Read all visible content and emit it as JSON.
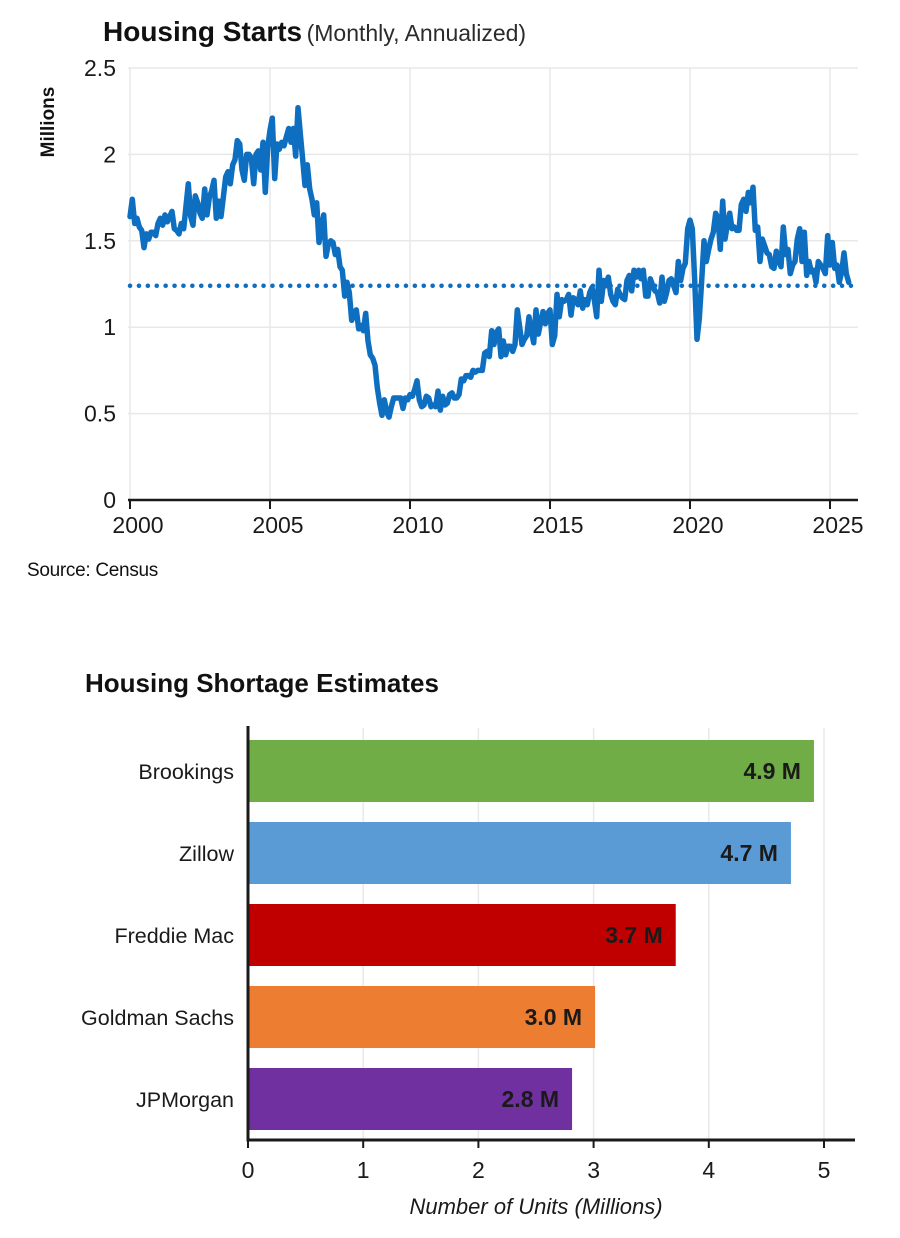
{
  "page": {
    "background": "#ffffff",
    "text_color": "#1a1a1a"
  },
  "chart_data": [
    {
      "type": "line",
      "title": "Housing Starts",
      "subtitle": "(Monthly, Annualized)",
      "ylabel": "Millions",
      "source": "Source: Census",
      "xlim": [
        2000,
        2026
      ],
      "ylim": [
        0,
        2.5
      ],
      "x_ticks": [
        2000,
        2005,
        2010,
        2015,
        2020,
        2025
      ],
      "y_ticks": [
        0,
        0.5,
        1,
        1.5,
        2,
        2.5
      ],
      "grid": true,
      "line_color": "#0E6FC1",
      "grid_color": "#e8e8e8",
      "axis_color": "#1a1a1a",
      "reference_line": {
        "value": 1.24,
        "style": "dotted",
        "color": "#0E6FC1"
      },
      "series": [
        {
          "name": "Housing Starts",
          "frequency": "monthly",
          "start_year": 2000,
          "start_month": 1,
          "values": [
            1.64,
            1.74,
            1.6,
            1.63,
            1.58,
            1.56,
            1.46,
            1.54,
            1.51,
            1.55,
            1.55,
            1.53,
            1.6,
            1.63,
            1.59,
            1.65,
            1.61,
            1.64,
            1.67,
            1.57,
            1.56,
            1.54,
            1.6,
            1.57,
            1.7,
            1.83,
            1.64,
            1.59,
            1.76,
            1.72,
            1.66,
            1.63,
            1.8,
            1.65,
            1.75,
            1.79,
            1.85,
            1.63,
            1.73,
            1.64,
            1.75,
            1.87,
            1.9,
            1.83,
            1.94,
            1.97,
            2.08,
            2.06,
            1.91,
            1.85,
            2.0,
            2.0,
            1.98,
            1.83,
            2.0,
            2.02,
            1.91,
            2.07,
            1.78,
            2.04,
            2.14,
            2.21,
            1.86,
            2.06,
            2.03,
            2.07,
            2.05,
            2.1,
            2.15,
            2.07,
            2.15,
            1.99,
            2.27,
            2.12,
            1.97,
            1.82,
            1.94,
            1.8,
            1.74,
            1.65,
            1.72,
            1.49,
            1.57,
            1.65,
            1.41,
            1.48,
            1.5,
            1.49,
            1.42,
            1.45,
            1.35,
            1.33,
            1.18,
            1.26,
            1.2,
            1.04,
            1.08,
            1.1,
            0.99,
            1.01,
            0.98,
            1.08,
            0.92,
            0.84,
            0.82,
            0.78,
            0.65,
            0.56,
            0.49,
            0.58,
            0.51,
            0.48,
            0.54,
            0.59,
            0.59,
            0.59,
            0.59,
            0.53,
            0.59,
            0.58,
            0.61,
            0.6,
            0.64,
            0.69,
            0.58,
            0.54,
            0.55,
            0.6,
            0.59,
            0.54,
            0.55,
            0.54,
            0.63,
            0.52,
            0.6,
            0.55,
            0.56,
            0.61,
            0.62,
            0.59,
            0.59,
            0.61,
            0.7,
            0.69,
            0.72,
            0.72,
            0.71,
            0.75,
            0.74,
            0.75,
            0.75,
            0.75,
            0.85,
            0.86,
            0.83,
            0.98,
            0.9,
            0.97,
            0.99,
            0.83,
            0.92,
            0.84,
            0.89,
            0.89,
            0.86,
            0.9,
            1.1,
            1.0,
            0.9,
            0.93,
            0.95,
            1.06,
            0.98,
            0.91,
            1.1,
            0.96,
            1.03,
            1.09,
            1.02,
            1.08,
            1.1,
            0.9,
            0.95,
            1.19,
            1.06,
            1.16,
            1.15,
            1.16,
            1.19,
            1.07,
            1.17,
            1.16,
            1.13,
            1.21,
            1.11,
            1.16,
            1.13,
            1.2,
            1.23,
            1.16,
            1.06,
            1.33,
            1.15,
            1.27,
            1.24,
            1.29,
            1.19,
            1.15,
            1.13,
            1.22,
            1.19,
            1.17,
            1.16,
            1.27,
            1.3,
            1.21,
            1.33,
            1.29,
            1.33,
            1.28,
            1.33,
            1.18,
            1.18,
            1.28,
            1.24,
            1.21,
            1.2,
            1.14,
            1.29,
            1.15,
            1.2,
            1.27,
            1.28,
            1.24,
            1.2,
            1.38,
            1.27,
            1.34,
            1.37,
            1.57,
            1.62,
            1.57,
            1.27,
            0.93,
            1.05,
            1.27,
            1.5,
            1.38,
            1.45,
            1.51,
            1.55,
            1.66,
            1.63,
            1.45,
            1.73,
            1.51,
            1.59,
            1.66,
            1.57,
            1.58,
            1.56,
            1.56,
            1.71,
            1.74,
            1.67,
            1.78,
            1.72,
            1.81,
            1.56,
            1.58,
            1.38,
            1.51,
            1.47,
            1.43,
            1.42,
            1.35,
            1.34,
            1.44,
            1.38,
            1.35,
            1.58,
            1.42,
            1.45,
            1.31,
            1.36,
            1.38,
            1.51,
            1.57,
            1.38,
            1.55,
            1.3,
            1.38,
            1.32,
            1.33,
            1.26,
            1.38,
            1.36,
            1.34,
            1.31,
            1.53,
            1.36,
            1.49,
            1.34,
            1.36,
            1.26,
            1.32,
            1.43,
            1.31,
            1.26
          ]
        }
      ]
    },
    {
      "type": "bar",
      "orientation": "horizontal",
      "title": "Housing Shortage Estimates",
      "xlabel": "Number of Units (Millions)",
      "categories": [
        "Brookings",
        "Zillow",
        "Freddie Mac",
        "Goldman Sachs",
        "JPMorgan"
      ],
      "values": [
        4.9,
        4.7,
        3.7,
        3.0,
        2.8
      ],
      "bar_labels": [
        "4.9 M",
        "4.7 M",
        "3.7 M",
        "3.0 M",
        "2.8 M"
      ],
      "colors": [
        "#70AD47",
        "#5B9BD5",
        "#C00000",
        "#ED7D31",
        "#7030A0"
      ],
      "xlim": [
        0,
        5.3
      ],
      "x_ticks": [
        0,
        1,
        2,
        3,
        4,
        5
      ],
      "grid": true,
      "grid_color": "#e9e9e9",
      "axis_color": "#1a1a1a",
      "value_label_color": "#ffffff"
    }
  ]
}
